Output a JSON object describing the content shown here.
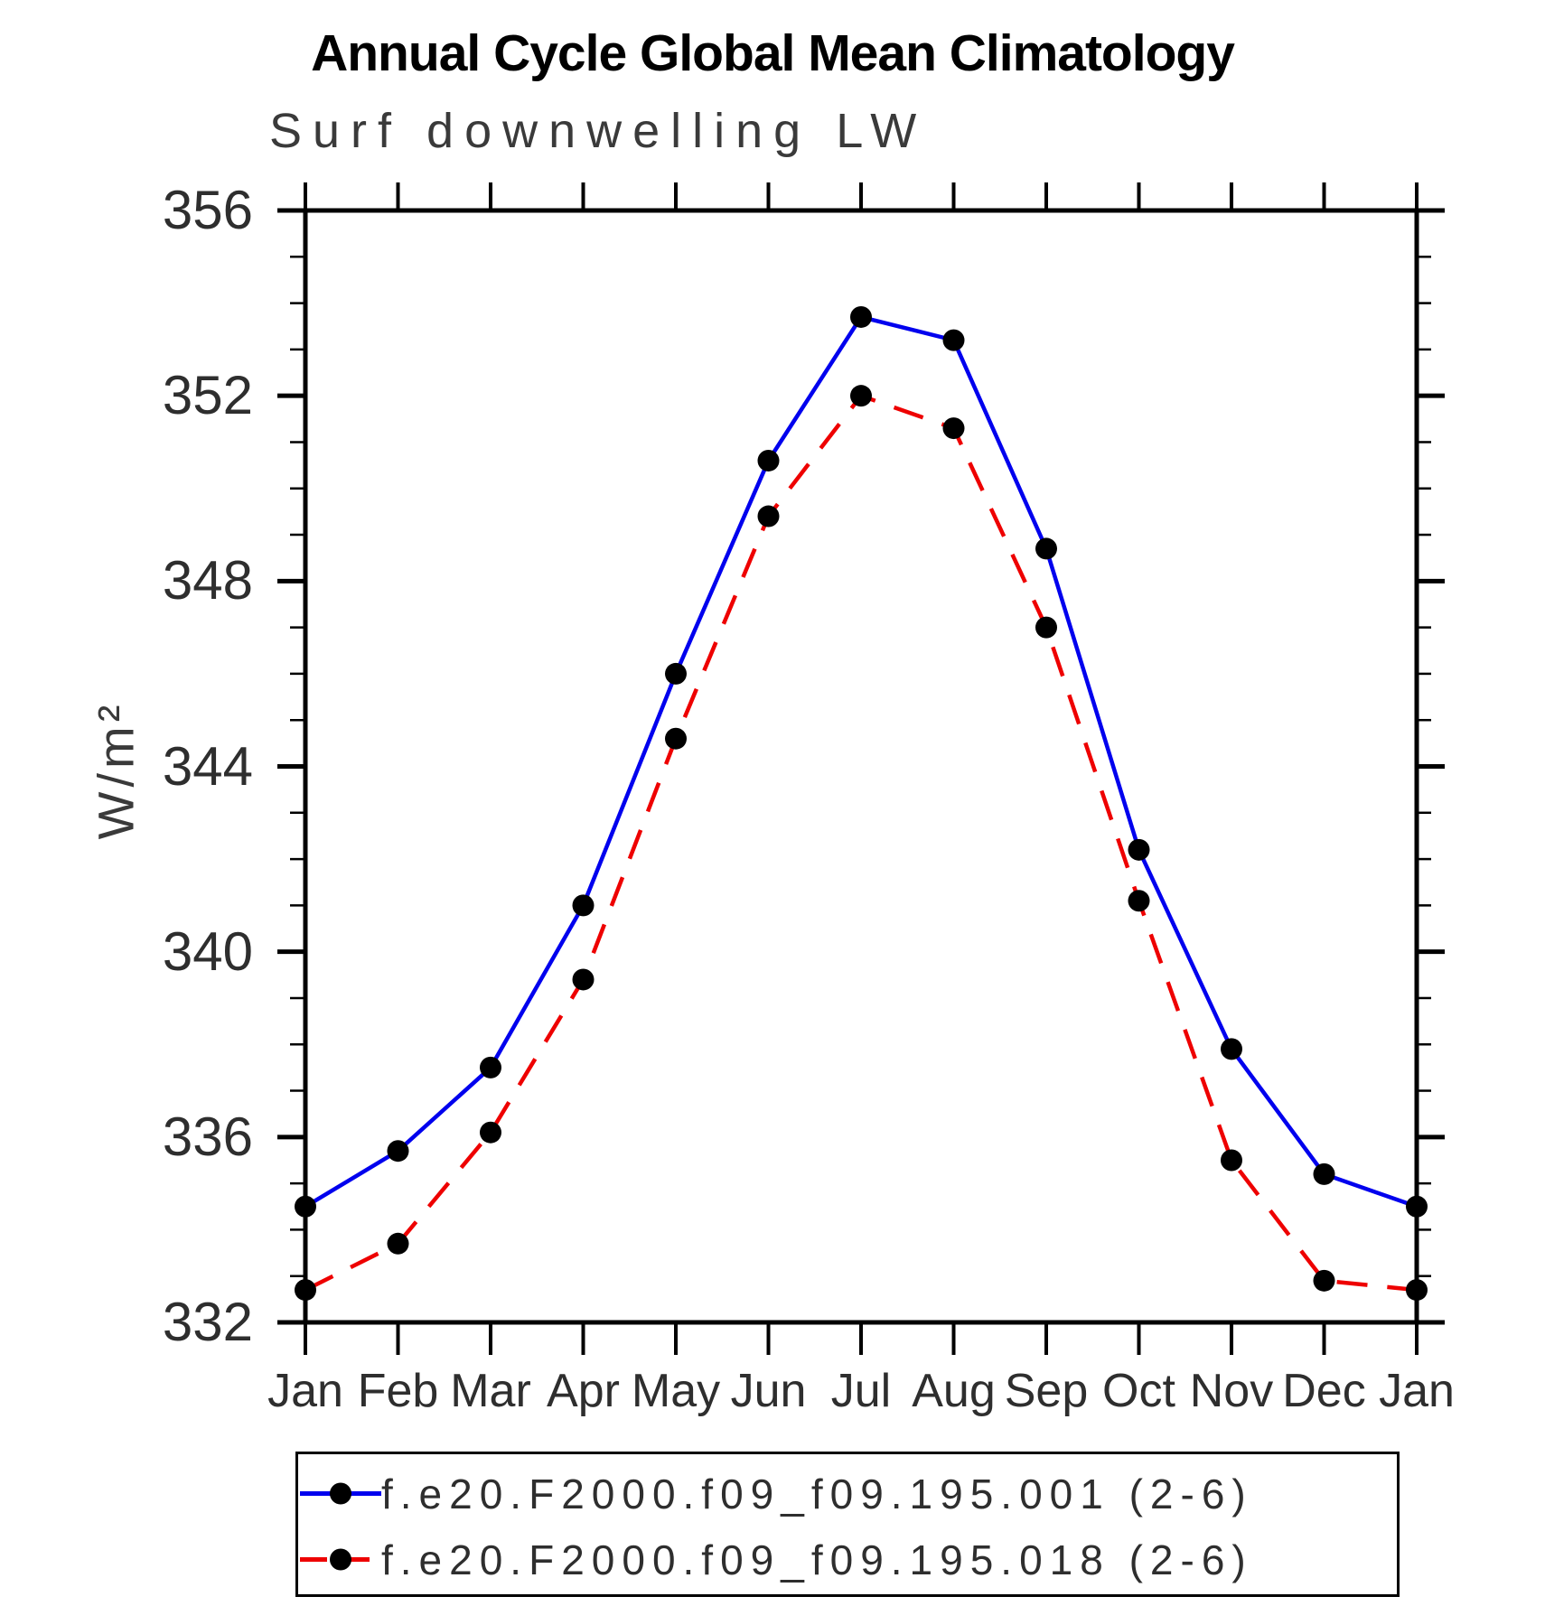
{
  "page": {
    "title": "Annual Cycle Global Mean Climatology",
    "subtitle": "Surf downwelling LW"
  },
  "chart_data": {
    "type": "line",
    "title": "Annual Cycle Global Mean Climatology",
    "subtitle": "Surf downwelling LW",
    "xlabel": "",
    "ylabel": "W/m²",
    "ylim": [
      332,
      356
    ],
    "y_major_ticks": [
      332,
      336,
      340,
      344,
      348,
      352,
      356
    ],
    "y_minor_step": 1,
    "categories": [
      "Jan",
      "Feb",
      "Mar",
      "Apr",
      "May",
      "Jun",
      "Jul",
      "Aug",
      "Sep",
      "Oct",
      "Nov",
      "Dec",
      "Jan"
    ],
    "grid": false,
    "legend_position": "bottom",
    "series": [
      {
        "name": "f.e20.F2000.f09_f09.195.001 (2-6)",
        "color": "#0000ee",
        "style": "solid",
        "marker": "circle",
        "marker_color": "#000000",
        "values": [
          334.5,
          335.7,
          337.5,
          341.0,
          346.0,
          350.6,
          353.7,
          353.2,
          348.7,
          342.2,
          337.9,
          335.2,
          334.5
        ]
      },
      {
        "name": "f.e20.F2000.f09_f09.195.018 (2-6)",
        "color": "#ee0000",
        "style": "dashed",
        "marker": "circle",
        "marker_color": "#000000",
        "values": [
          332.7,
          333.7,
          336.1,
          339.4,
          344.6,
          349.4,
          352.0,
          351.3,
          347.0,
          341.1,
          335.5,
          332.9,
          332.7
        ]
      }
    ],
    "axis_color": "#000000"
  }
}
